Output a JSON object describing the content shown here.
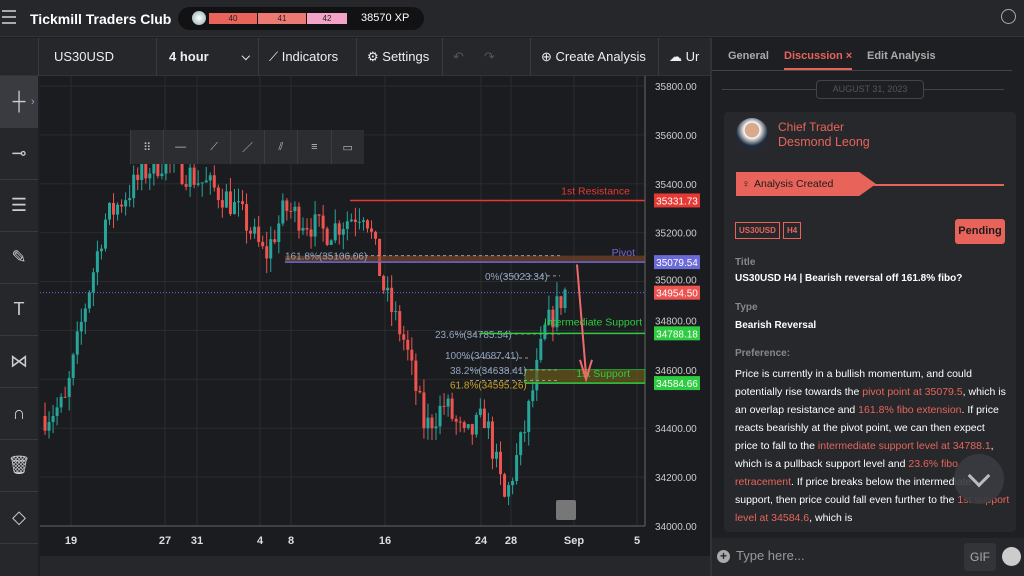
{
  "app": {
    "title": "Tickmill Traders Club",
    "xp_levels": [
      "40",
      "41",
      "42"
    ],
    "xp": "38570 XP"
  },
  "toolbar": {
    "symbol": "US30USD",
    "interval": "4 hour",
    "indicators": "Indicators",
    "settings": "Settings",
    "create": "Create Analysis",
    "upload": "Ur"
  },
  "chart_data": {
    "type": "candlestick",
    "symbol": "US30USD",
    "timeframe": "4 hour",
    "ylim": [
      34000,
      35800
    ],
    "y_ticks": [
      "35800.00",
      "35600.00",
      "35400.00",
      "35200.00",
      "35000.00",
      "34800.00",
      "34600.00",
      "34400.00",
      "34200.00",
      "34000.00"
    ],
    "x_ticks": [
      "19",
      "27",
      "31",
      "4",
      "8",
      "16",
      "24",
      "28",
      "Sep",
      "5"
    ],
    "approx_closes": [
      34450,
      34500,
      34900,
      35250,
      35350,
      35450,
      35500,
      35450,
      35400,
      35350,
      35250,
      35100,
      35300,
      35250,
      35200,
      35250,
      35300,
      34950,
      34750,
      34400,
      34500,
      34350,
      34450,
      34100,
      34400,
      34800,
      34960
    ],
    "levels": [
      {
        "label": "1st Resistance",
        "price": "35331.73",
        "value": 35331.73,
        "color": "#e53935"
      },
      {
        "label": "Pivot",
        "price": "35079.54",
        "value": 35079.54,
        "color": "#6a6ad8"
      },
      {
        "label": "Intermediate Support",
        "price": "34788.18",
        "value": 34788.18,
        "color": "#2ecc40"
      },
      {
        "label": "1st Support",
        "price": "34584.66",
        "value": 34584.66,
        "color": "#2ecc40"
      }
    ],
    "current_price": {
      "price": "34954.50",
      "value": 34954.5
    },
    "fib": [
      {
        "label": "161.8%(35106.06)",
        "value": 35106.06
      },
      {
        "label": "0%(35023.34)",
        "value": 35023.34
      },
      {
        "label": "23.6%(34785.54)",
        "value": 34785.54
      },
      {
        "label": "100%(34687.41)",
        "value": 34687.41
      },
      {
        "label": "38.2%(34638.41)",
        "value": 34638.41
      },
      {
        "label": "61.8%(34595.26)",
        "value": 34595.26
      }
    ],
    "colors": {
      "up": "#26a69a",
      "down": "#ef5350"
    }
  },
  "panel": {
    "tabs": [
      "General",
      "Discussion",
      "Edit Analysis"
    ],
    "close": "×",
    "date": "AUGUST 31, 2023",
    "role": "Chief Trader",
    "name": "Desmond Leong",
    "banner": "Analysis Created",
    "tags": [
      "US30USD",
      "H4"
    ],
    "status": "Pending",
    "title_label": "Title",
    "title": "US30USD H4 | Bearish reversal off 161.8% fibo?",
    "type_label": "Type",
    "type": "Bearish Reversal",
    "pref_label": "Preference:",
    "body": [
      {
        "t": "Price is currently in a bullish momentum, and could potentially rise towards the "
      },
      {
        "t": "pivot point at 35079.5",
        "h": true
      },
      {
        "t": ", which is an overlap resistance and "
      },
      {
        "t": "161.8% fibo extension",
        "h": true
      },
      {
        "t": ". If price reacts bearishly at the pivot point, we can then expect price to fall to the "
      },
      {
        "t": "intermediate support level at 34788.1",
        "h": true
      },
      {
        "t": ", which is a pullback support level and "
      },
      {
        "t": "23.6% fibo retracement",
        "h": true
      },
      {
        "t": ". If price breaks below the intermediate support, then price could fall even further to the "
      },
      {
        "t": "1st support level at 34584.6",
        "h": true
      },
      {
        "t": ", which is"
      }
    ],
    "input_placeholder": "Type here...",
    "gif": "GIF",
    "accent": "#e8645a"
  }
}
